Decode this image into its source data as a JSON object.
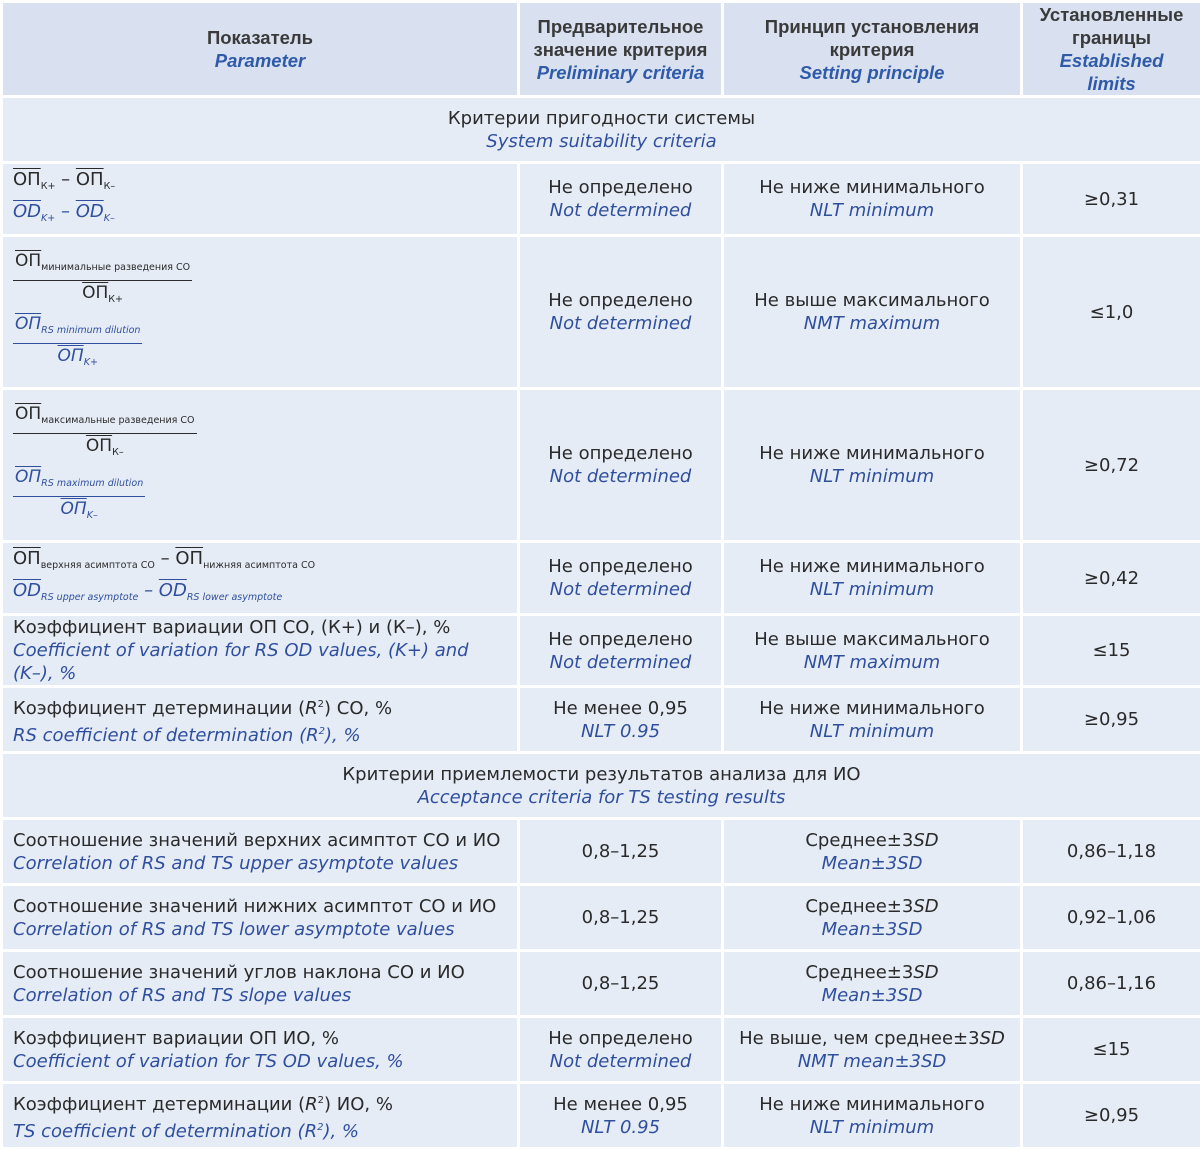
{
  "header": {
    "col1_ru": "Показатель",
    "col1_en": "Parameter",
    "col2_ru": "Предварительное значение критерия",
    "col2_en": "Preliminary criteria",
    "col3_ru": "Принцип установления критерия",
    "col3_en": "Setting principle",
    "col4_ru": "Установленные границы",
    "col4_en": "Established limits"
  },
  "sections": [
    {
      "ru": "Критерии пригодности системы",
      "en": "System suitability criteria"
    },
    {
      "ru": "Критерии приемлемости результатов анализа для ИО",
      "en": "Acceptance criteria for TS testing results"
    }
  ],
  "formula": {
    "op": "ОП",
    "od": "OD",
    "minus": "–",
    "k_plus": "К+",
    "k_minus": "К–",
    "k_plus_en": "K+",
    "k_minus_en": "K–",
    "ru_min_dilution": "минимальные разведения СО",
    "en_min_dilution": "RS minimum dilution",
    "ru_max_dilution": "максимальные разведения СО",
    "en_max_dilution": "RS maximum dilution",
    "ru_upper_asym": "верхняя асимптота СО",
    "ru_lower_asym": "нижняя асимптота СО",
    "en_upper_asym": "RS upper asymptote",
    "en_lower_asym": "RS lower asymptote"
  },
  "rows": [
    {
      "prelim_ru": "Не определено",
      "prelim_en": "Not determined",
      "principle_ru": "Не ниже минимального",
      "principle_en": "NLT minimum",
      "limit": "≥0,31"
    },
    {
      "prelim_ru": "Не определено",
      "prelim_en": "Not determined",
      "principle_ru": "Не выше максимального",
      "principle_en": "NMT maximum",
      "limit": "≤1,0"
    },
    {
      "prelim_ru": "Не определено",
      "prelim_en": "Not determined",
      "principle_ru": "Не ниже минимального",
      "principle_en": "NLT minimum",
      "limit": "≥0,72"
    },
    {
      "prelim_ru": "Не определено",
      "prelim_en": "Not determined",
      "principle_ru": "Не ниже минимального",
      "principle_en": "NLT minimum",
      "limit": "≥0,42"
    },
    {
      "param_ru": "Коэффициент вариации ОП СО, (К+) и (К–), %",
      "param_en": "Coefficient of variation for RS OD values, (K+) and (K–), %",
      "prelim_ru": "Не определено",
      "prelim_en": "Not determined",
      "principle_ru": "Не выше максимального",
      "principle_en": "NMT maximum",
      "limit": "≤15"
    },
    {
      "param_ru_a": "Коэффициент детерминации (",
      "param_ru_b": ") СО, %",
      "param_en_a": "RS coefficient of determination (",
      "param_en_b": "), %",
      "r2_r": "R",
      "r2_sup": "2",
      "prelim_ru": "Не менее 0,95",
      "prelim_en": "NLT 0.95",
      "principle_ru": "Не ниже минимального",
      "principle_en": "NLT minimum",
      "limit": "≥0,95"
    },
    {
      "param_ru": "Соотношение значений верхних асимптот СО и ИО",
      "param_en": "Correlation of RS and TS upper asymptote values",
      "prelim": "0,8–1,25",
      "principle_ru_a": "Среднее±3",
      "principle_ru_b": "SD",
      "principle_en": "Mean±3SD",
      "limit": "0,86–1,18"
    },
    {
      "param_ru": "Соотношение значений нижних асимптот СО и ИО",
      "param_en": "Correlation of RS and TS lower asymptote values",
      "prelim": "0,8–1,25",
      "principle_ru_a": "Среднее±3",
      "principle_ru_b": "SD",
      "principle_en": "Mean±3SD",
      "limit": "0,92–1,06"
    },
    {
      "param_ru": "Соотношение значений углов наклона СО и ИО",
      "param_en": "Correlation of RS and TS slope values",
      "prelim": "0,8–1,25",
      "principle_ru_a": "Среднее±3",
      "principle_ru_b": "SD",
      "principle_en": "Mean±3SD",
      "limit": "0,86–1,16"
    },
    {
      "param_ru": "Коэффициент вариации ОП ИО, %",
      "param_en": "Coefficient of variation for TS OD values, %",
      "prelim_ru": "Не определено",
      "prelim_en": "Not determined",
      "principle_ru_a": "Не выше, чем среднее±3",
      "principle_ru_b": "SD",
      "principle_en": "NMT mean±3SD",
      "limit": "≤15"
    },
    {
      "param_ru_a": "Коэффициент детерминации (",
      "param_ru_b": ") ИО, %",
      "param_en_a": "TS coefficient of determination (",
      "param_en_b": "), %",
      "r2_r": "R",
      "r2_sup": "2",
      "prelim_ru": "Не менее 0,95",
      "prelim_en": "NLT 0.95",
      "principle_ru": "Не ниже минимального",
      "principle_en": "NLT minimum",
      "limit": "≥0,95"
    }
  ]
}
